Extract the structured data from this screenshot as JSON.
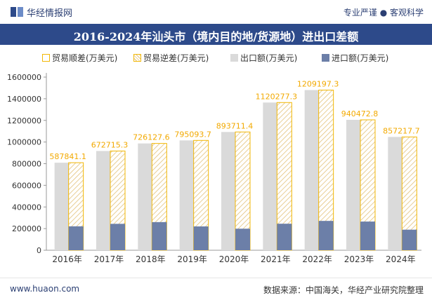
{
  "header": {
    "brand": "华经情报网",
    "tagline": "专业严谨 ● 客观科学",
    "logo_icon": "huajing-logo-icon"
  },
  "title": "2016-2024年汕头市（境内目的地/货源地）进出口差额",
  "legend": {
    "surplus": "贸易顺差(万美元)",
    "deficit": "贸易逆差(万美元)",
    "export": "出口额(万美元)",
    "import": "进口额(万美元)"
  },
  "footer": {
    "site": "www.huaon.com",
    "source": "数据来源：中国海关，华经产业研究院整理"
  },
  "chart_data": {
    "type": "bar",
    "categories": [
      "2016年",
      "2017年",
      "2018年",
      "2019年",
      "2020年",
      "2021年",
      "2022年",
      "2023年",
      "2024年"
    ],
    "series": [
      {
        "name": "出口额(万美元)",
        "values": [
          809000,
          917000,
          987000,
          1015000,
          1093000,
          1365000,
          1480000,
          1205000,
          1047000
        ]
      },
      {
        "name": "进口额(万美元)",
        "values": [
          221000,
          244000,
          260000,
          220000,
          199000,
          245000,
          271000,
          265000,
          190000
        ]
      },
      {
        "name": "贸易顺差(万美元)",
        "values": [
          587841.1,
          672715.3,
          726127.6,
          795093.7,
          893711.4,
          1120277.3,
          1209197.3,
          940472.8,
          857217.7
        ]
      }
    ],
    "labels": [
      "587841.1",
      "672715.3",
      "726127.6",
      "795093.7",
      "893711.4",
      "1120277.3",
      "1209197.3",
      "940472.8",
      "857217.7"
    ],
    "ylim": [
      0,
      1600000
    ],
    "yticks": [
      "0",
      "200000",
      "400000",
      "600000",
      "800000",
      "1000000",
      "1200000",
      "1400000",
      "1600000"
    ],
    "grid": false,
    "legend_position": "top",
    "colors": {
      "export": "#dadada",
      "import": "#6c7fa8",
      "surplus_border": "#f2b705",
      "label": "#f2a900",
      "hatch": "#e3c27a"
    }
  }
}
